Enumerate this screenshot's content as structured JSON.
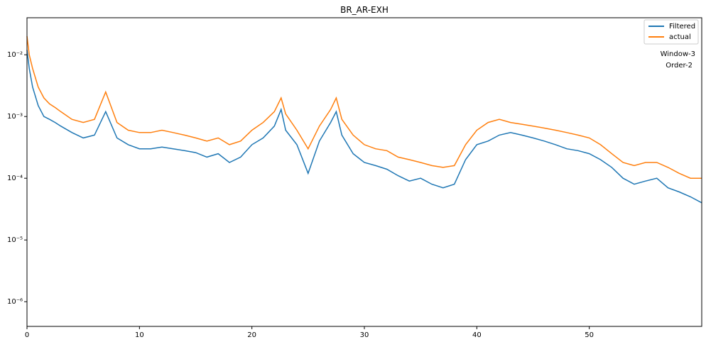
{
  "chart_data": {
    "type": "line",
    "title": "BR_AR-EXH",
    "xlabel": "",
    "ylabel": "",
    "xlim": [
      0,
      60
    ],
    "ylim_log10": [
      -6.4,
      -1.4
    ],
    "yscale": "log",
    "grid": false,
    "legend_position": "top-right",
    "x_ticks": [
      0,
      10,
      20,
      30,
      40,
      50
    ],
    "x_tick_labels": [
      "0",
      "10",
      "20",
      "30",
      "40",
      "50"
    ],
    "y_ticks_log10": [
      -6,
      -5,
      -4,
      -3,
      -2
    ],
    "y_tick_labels": [
      "10⁻⁶",
      "10⁻⁵",
      "10⁻⁴",
      "10⁻³",
      "10⁻²"
    ],
    "annotations": [
      "Window-3",
      "Order-2"
    ],
    "series": [
      {
        "name": "Filtered",
        "color": "#1f77b4",
        "x": [
          0,
          0.2,
          0.5,
          1,
          1.5,
          2,
          2.5,
          3,
          4,
          5,
          6,
          7,
          8,
          9,
          10,
          11,
          12,
          13,
          14,
          15,
          16,
          17,
          18,
          19,
          20,
          21,
          22,
          22.6,
          23,
          24,
          25,
          26,
          27,
          27.5,
          28,
          29,
          30,
          31,
          32,
          33,
          34,
          35,
          36,
          37,
          38,
          39,
          40,
          41,
          42,
          43,
          44,
          45,
          46,
          47,
          48,
          49,
          50,
          51,
          52,
          53,
          54,
          55,
          56,
          57,
          58,
          59,
          60
        ],
        "y": [
          0.012,
          0.006,
          0.003,
          0.0015,
          0.001,
          0.0009,
          0.0008,
          0.0007,
          0.00055,
          0.00045,
          0.0005,
          0.0012,
          0.00045,
          0.00035,
          0.0003,
          0.0003,
          0.00032,
          0.0003,
          0.00028,
          0.00026,
          0.00022,
          0.00025,
          0.00018,
          0.00022,
          0.00035,
          0.00045,
          0.0007,
          0.0013,
          0.0006,
          0.00035,
          0.00012,
          0.0004,
          0.0008,
          0.0012,
          0.0005,
          0.00025,
          0.00018,
          0.00016,
          0.00014,
          0.00011,
          9e-05,
          0.0001,
          8e-05,
          7e-05,
          8e-05,
          0.0002,
          0.00035,
          0.0004,
          0.0005,
          0.00055,
          0.0005,
          0.00045,
          0.0004,
          0.00035,
          0.0003,
          0.00028,
          0.00025,
          0.0002,
          0.00015,
          0.0001,
          8e-05,
          9e-05,
          0.0001,
          7e-05,
          6e-05,
          5e-05,
          4e-05
        ]
      },
      {
        "name": "actual",
        "color": "#ff7f0e",
        "x": [
          0,
          0.2,
          0.5,
          1,
          1.5,
          2,
          2.5,
          3,
          4,
          5,
          6,
          7,
          8,
          9,
          10,
          11,
          12,
          13,
          14,
          15,
          16,
          17,
          18,
          19,
          20,
          21,
          22,
          22.6,
          23,
          24,
          25,
          26,
          27,
          27.5,
          28,
          29,
          30,
          31,
          32,
          33,
          34,
          35,
          36,
          37,
          38,
          39,
          40,
          41,
          42,
          43,
          44,
          45,
          46,
          47,
          48,
          49,
          50,
          51,
          52,
          53,
          54,
          55,
          56,
          57,
          58,
          59,
          60
        ],
        "y": [
          0.02,
          0.01,
          0.006,
          0.003,
          0.002,
          0.0016,
          0.0014,
          0.0012,
          0.0009,
          0.0008,
          0.0009,
          0.0025,
          0.0008,
          0.0006,
          0.00055,
          0.00055,
          0.0006,
          0.00055,
          0.0005,
          0.00045,
          0.0004,
          0.00045,
          0.00035,
          0.0004,
          0.0006,
          0.0008,
          0.0012,
          0.002,
          0.0011,
          0.0006,
          0.0003,
          0.0007,
          0.0013,
          0.002,
          0.0009,
          0.0005,
          0.00035,
          0.0003,
          0.00028,
          0.00022,
          0.0002,
          0.00018,
          0.00016,
          0.00015,
          0.00016,
          0.00035,
          0.0006,
          0.0008,
          0.0009,
          0.0008,
          0.00075,
          0.0007,
          0.00065,
          0.0006,
          0.00055,
          0.0005,
          0.00045,
          0.00035,
          0.00025,
          0.00018,
          0.00016,
          0.00018,
          0.00018,
          0.00015,
          0.00012,
          0.0001,
          0.0001
        ]
      }
    ]
  }
}
